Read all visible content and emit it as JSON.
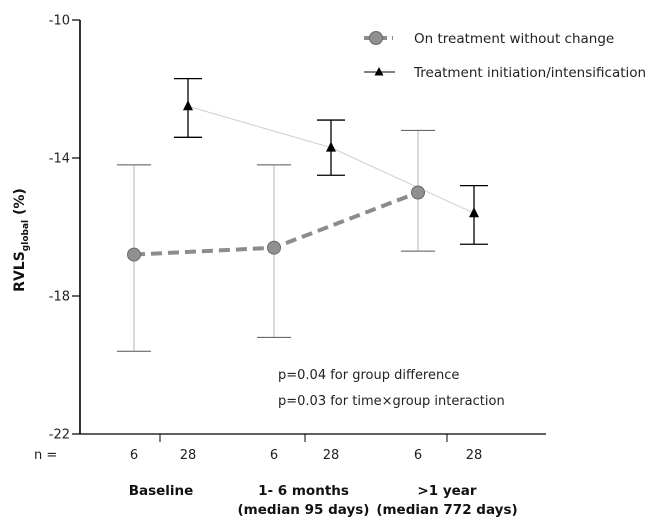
{
  "chart_data": {
    "type": "line",
    "ylabel_main": "RVLS",
    "ylabel_sub": "global",
    "ylabel_unit": " (%)",
    "ylim": [
      -22,
      -10
    ],
    "yticks": [
      -10,
      -14,
      -18,
      -22
    ],
    "categories": [
      {
        "lines": [
          "Baseline"
        ]
      },
      {
        "lines": [
          "1- 6 months",
          "(median 95 days)"
        ]
      },
      {
        "lines": [
          ">1 year",
          "(median 772 days)"
        ]
      }
    ],
    "n_label": "n =",
    "series": [
      {
        "name": "On treatment without change",
        "color": "#8c8c8c",
        "style": "dashed-circle",
        "n": [
          "6",
          "6",
          "6"
        ],
        "values": [
          -16.8,
          -16.6,
          -15.0
        ],
        "ci_low": [
          -19.6,
          -19.2,
          -16.7
        ],
        "ci_high": [
          -14.2,
          -14.2,
          -13.2
        ]
      },
      {
        "name": "Treatment initiation/intensification",
        "color": "#000000",
        "style": "solid-triangle",
        "n": [
          "28",
          "28",
          "28"
        ],
        "values": [
          -12.5,
          -13.7,
          -15.6
        ],
        "ci_low": [
          -13.4,
          -14.5,
          -16.5
        ],
        "ci_high": [
          -11.7,
          -12.9,
          -14.8
        ]
      }
    ],
    "annotations": [
      "p=0.04 for group difference",
      "p=0.03 for time×group interaction"
    ],
    "legend_position": "top-right"
  }
}
